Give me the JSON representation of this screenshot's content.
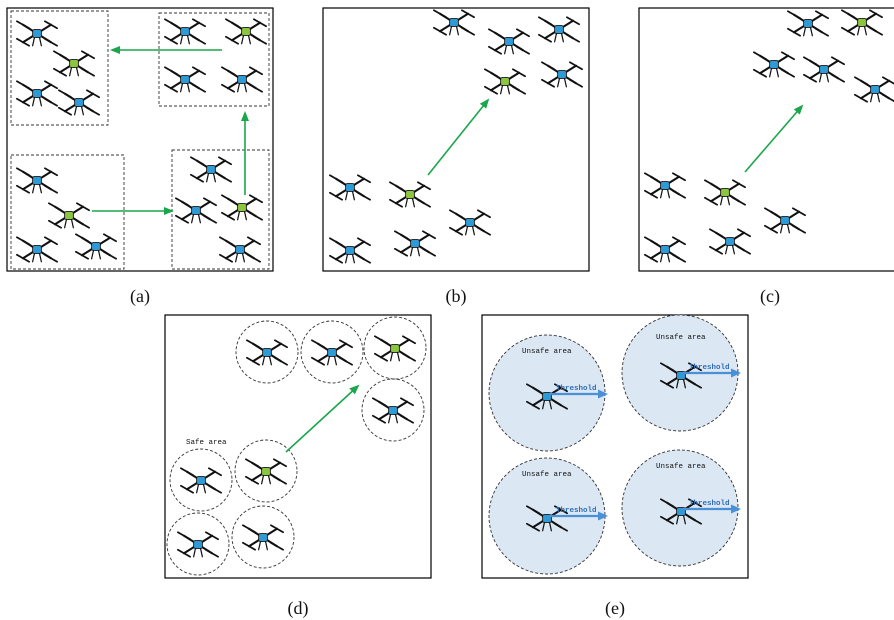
{
  "panels": [
    {
      "id": "a",
      "caption": "(a)"
    },
    {
      "id": "b",
      "caption": "(b)"
    },
    {
      "id": "c",
      "caption": "(c)"
    },
    {
      "id": "d",
      "caption": "(d)",
      "safe_area_label": "Safe area"
    },
    {
      "id": "e",
      "caption": "(e)",
      "unsafe_area_label": "Unsafe area",
      "threshold_label": "Threshold"
    }
  ],
  "colors": {
    "regular_drone": "#2e9bd6",
    "leader_drone": "#8cc63f",
    "move_arrow": "#1aa64a",
    "threshold_arrow": "#4a90d9",
    "unsafe_area_fill": "#dbe7f3"
  },
  "icons": [
    "quadcopter-drone-icon",
    "leader-drone-icon"
  ]
}
